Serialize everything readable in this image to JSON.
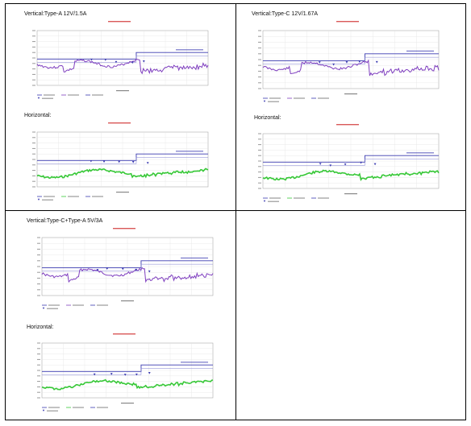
{
  "cells": [
    {
      "heading": "Vertical:Type-A 12V/1.5A",
      "sub": "Horizontal:",
      "vert_color": "#7f3fbf",
      "horiz_color": "#37c837"
    },
    {
      "heading": "Vertical:Type-C 12V/1.67A",
      "sub": "Horizontal:",
      "vert_color": "#7f3fbf",
      "horiz_color": "#37c837"
    },
    {
      "heading": "Vertical:Type-C+Type-A 5V/3A",
      "sub": "Horizontal:",
      "vert_color": "#7f3fbf",
      "horiz_color": "#37c837"
    }
  ],
  "colors": {
    "limit_line": "#3a3ab0",
    "marker": "#3a3ab0",
    "title_red": "#cc2222"
  }
}
